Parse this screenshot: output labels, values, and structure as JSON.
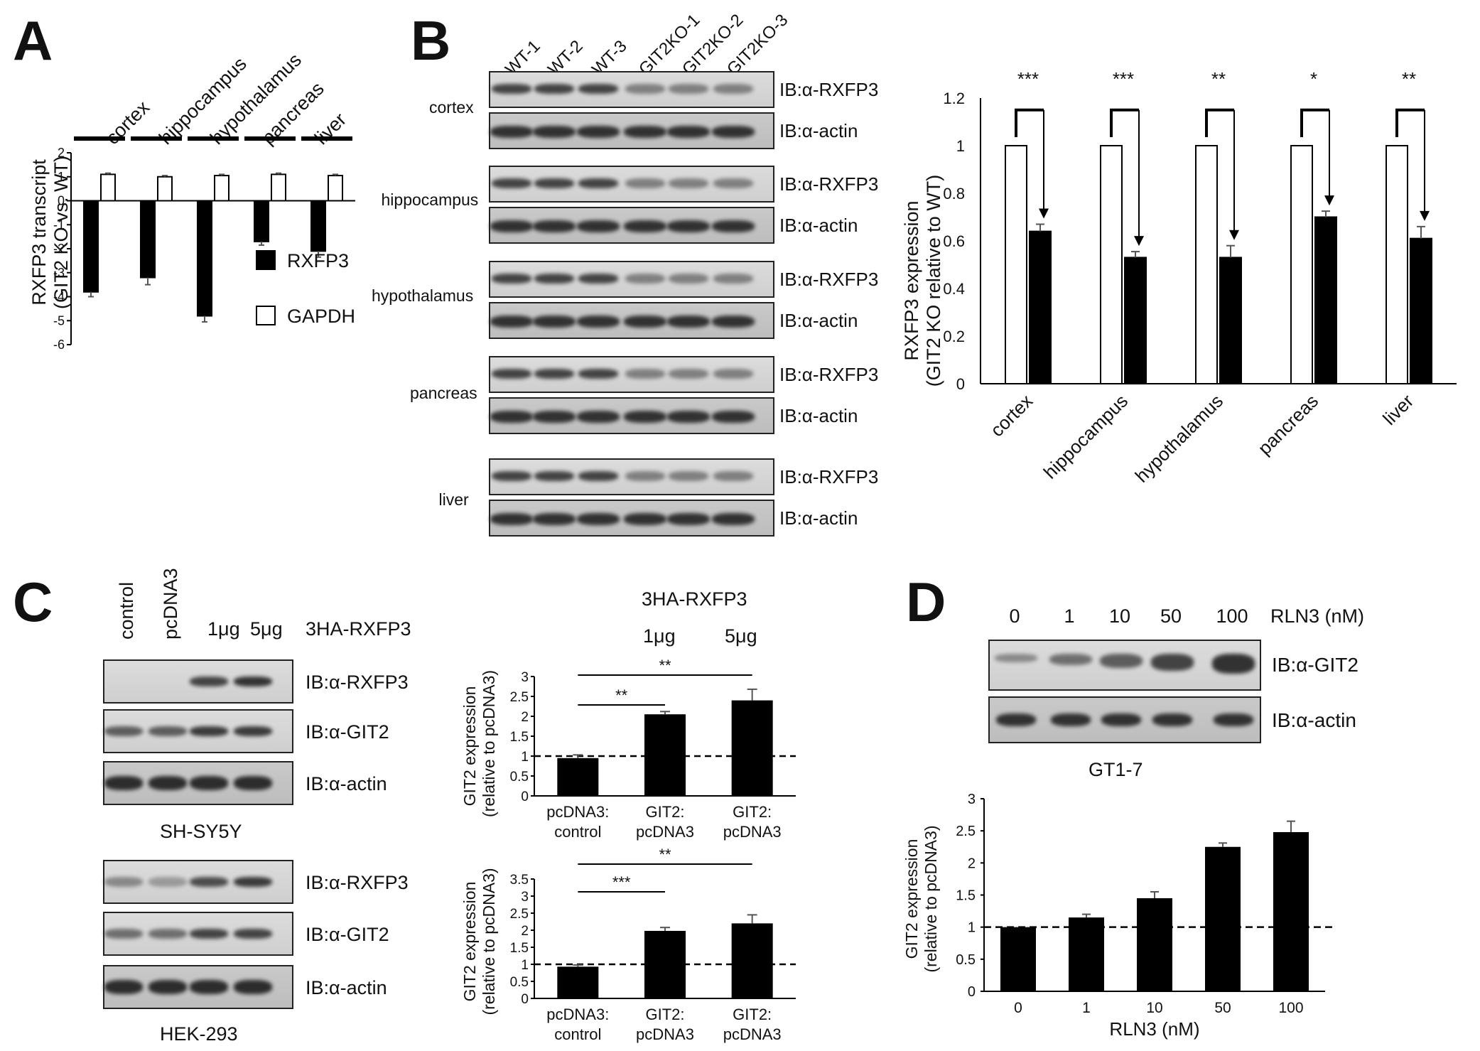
{
  "panels": {
    "A": {
      "letter": "A",
      "tissues": [
        "cortex",
        "hippocampus",
        "hypothalamus",
        "pancreas",
        "liver"
      ],
      "ylabel_line1": "RXFP3 transcript",
      "ylabel_line2": "(GIT2 KO vs. WT)",
      "legend": [
        "RXFP3",
        "GAPDH"
      ]
    },
    "B": {
      "letter": "B",
      "lanes": [
        "WT-1",
        "WT-2",
        "WT-3",
        "GIT2KO-1",
        "GIT2KO-2",
        "GIT2KO-3"
      ],
      "tissues": [
        "cortex",
        "hippocampus",
        "hypothalamus",
        "pancreas",
        "liver"
      ],
      "ib_rxfp3": "IB:α-RXFP3",
      "ib_actin": "IB:α-actin",
      "ylabel_line1": "RXFP3 expression",
      "ylabel_line2": "(GIT2 KO relative to WT)",
      "stars": [
        "***",
        "***",
        "**",
        "*",
        "**"
      ]
    },
    "C": {
      "letter": "C",
      "lane_labels": [
        "control",
        "pcDNA3",
        "1μg",
        "5μg"
      ],
      "construct": "3HA-RXFP3",
      "ib_rxfp3": "IB:α-RXFP3",
      "ib_git2": "IB:α-GIT2",
      "ib_actin": "IB:α-actin",
      "cell_line_1": "SH-SY5Y",
      "cell_line_2": "HEK-293",
      "chart_title": "3HA-RXFP3",
      "dose1": "1μg",
      "dose2": "5μg",
      "ylabel_line1": "GIT2 expression",
      "ylabel_line2": "(relative to pcDNA3)",
      "xcats": [
        [
          "pcDNA3:",
          "control"
        ],
        [
          "GIT2:",
          "pcDNA3"
        ],
        [
          "GIT2:",
          "pcDNA3"
        ]
      ],
      "stars_top": [
        "**",
        "**"
      ],
      "stars_bottom": [
        "***",
        "**"
      ]
    },
    "D": {
      "letter": "D",
      "doses": [
        "0",
        "1",
        "10",
        "50",
        "100"
      ],
      "rln3_label": "RLN3 (nM)",
      "ib_git2": "IB:α-GIT2",
      "ib_actin": "IB:α-actin",
      "cell_line": "GT1-7",
      "ylabel_line1": "GIT2 expression",
      "ylabel_line2": "(relative to pcDNA3)",
      "xlabel": "RLN3 (nM)"
    }
  },
  "chart_data": [
    {
      "id": "A",
      "type": "bar",
      "categories": [
        "cortex",
        "hippocampus",
        "hypothalamus",
        "pancreas",
        "liver"
      ],
      "series": [
        {
          "name": "RXFP3",
          "values": [
            -3.8,
            -3.2,
            -4.8,
            -1.7,
            -2.1
          ],
          "errors": [
            0.2,
            0.3,
            0.25,
            0.15,
            0.25
          ],
          "color": "#000000"
        },
        {
          "name": "GAPDH",
          "values": [
            1.1,
            1.0,
            1.05,
            1.1,
            1.05
          ],
          "errors": [
            0.05,
            0.05,
            0.05,
            0.05,
            0.05
          ],
          "color": "#ffffff"
        }
      ],
      "ylim": [
        -6,
        2
      ],
      "yticks": [
        2,
        1,
        0,
        -1,
        -2,
        -3,
        -4,
        -5,
        -6
      ]
    },
    {
      "id": "B",
      "type": "bar",
      "categories": [
        "cortex",
        "hippocampus",
        "hypothalamus",
        "pancreas",
        "liver"
      ],
      "series": [
        {
          "values": [
            1,
            1,
            1,
            1,
            1
          ],
          "color": "#ffffff"
        },
        {
          "values": [
            0.64,
            0.53,
            0.53,
            0.7,
            0.61
          ],
          "errors": [
            0.03,
            0.025,
            0.05,
            0.025,
            0.05
          ],
          "color": "#000000"
        }
      ],
      "ylim": [
        0,
        1.2
      ],
      "yticks": [
        "1.2",
        "1",
        "0.8",
        "0.6",
        "0.4",
        "0.2",
        "0"
      ],
      "annotations": [
        "***",
        "***",
        "**",
        "*",
        "**"
      ]
    },
    {
      "id": "C-top",
      "type": "bar",
      "categories": [
        "pcDNA3: control",
        "GIT2: pcDNA3",
        "GIT2: pcDNA3"
      ],
      "values": [
        0.95,
        2.05,
        2.4
      ],
      "errors": [
        0.08,
        0.07,
        0.28
      ],
      "ylim": [
        0,
        3
      ],
      "yticks": [
        "3",
        "2.5",
        "2",
        "1.5",
        "1",
        "0.5",
        "0"
      ],
      "reference_line": 1
    },
    {
      "id": "C-bottom",
      "type": "bar",
      "categories": [
        "pcDNA3: control",
        "GIT2: pcDNA3",
        "GIT2: pcDNA3"
      ],
      "values": [
        0.93,
        1.98,
        2.2
      ],
      "errors": [
        0.05,
        0.1,
        0.25
      ],
      "ylim": [
        0,
        3.5
      ],
      "yticks": [
        "3.5",
        "3",
        "2.5",
        "2",
        "1.5",
        "1",
        "0.5",
        "0"
      ],
      "reference_line": 1
    },
    {
      "id": "D",
      "type": "bar",
      "categories": [
        "0",
        "1",
        "10",
        "50",
        "100"
      ],
      "values": [
        1.0,
        1.15,
        1.45,
        2.25,
        2.48
      ],
      "errors": [
        0.0,
        0.05,
        0.1,
        0.06,
        0.17
      ],
      "ylim": [
        0,
        3
      ],
      "yticks": [
        "3",
        "2.5",
        "2",
        "1.5",
        "1",
        "0.5",
        "0"
      ],
      "xlabel": "RLN3 (nM)",
      "reference_line": 1
    }
  ]
}
